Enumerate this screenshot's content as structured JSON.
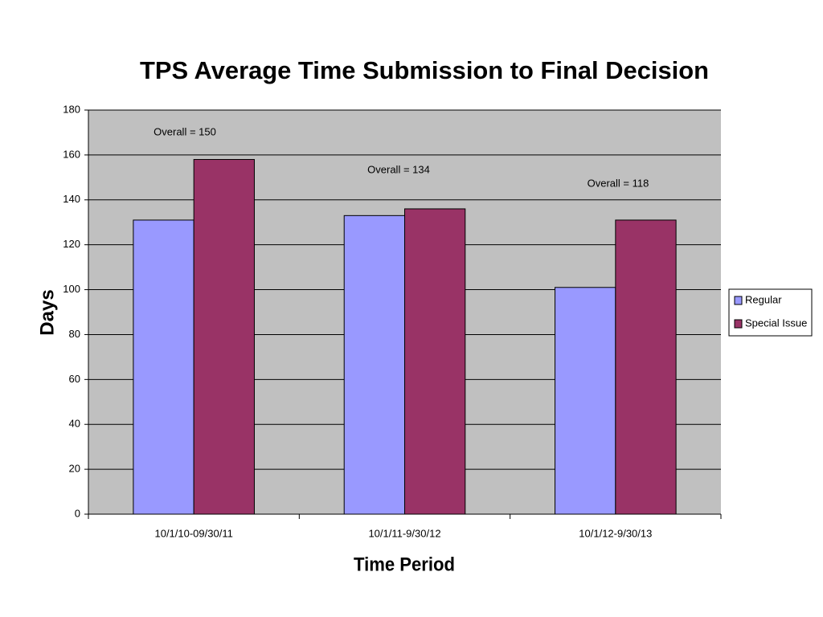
{
  "chart_data": {
    "type": "bar",
    "title": "TPS Average Time Submission to Final Decision",
    "x_label": "Time Period",
    "y_label": "Days",
    "categories": [
      "10/1/10-09/30/11",
      "10/1/11-9/30/12",
      "10/1/12-9/30/13"
    ],
    "series": [
      {
        "name": "Regular",
        "color": "#9999ff",
        "values": [
          131,
          133,
          101
        ]
      },
      {
        "name": "Special Issue",
        "color": "#993366",
        "values": [
          158,
          136,
          131
        ]
      }
    ],
    "annotations": [
      "Overall = 150",
      "Overall = 134",
      "Overall = 118"
    ],
    "ylim": [
      0,
      180
    ],
    "yticks": [
      0,
      20,
      40,
      60,
      80,
      100,
      120,
      140,
      160,
      180
    ],
    "grid": true,
    "legend": "right"
  }
}
